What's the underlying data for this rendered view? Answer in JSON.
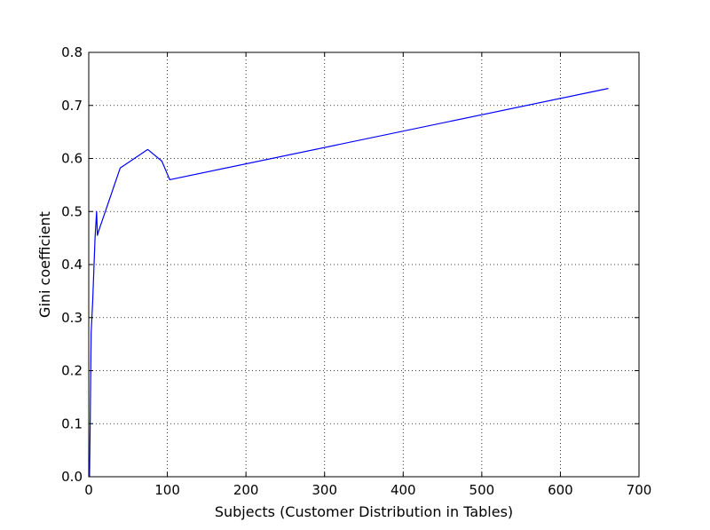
{
  "chart_data": {
    "type": "line",
    "title": "",
    "xlabel": "Subjects (Customer Distribution in Tables)",
    "ylabel": "Gini coefficient",
    "xlim": [
      0,
      700
    ],
    "ylim": [
      0,
      0.8
    ],
    "xticks": [
      0,
      100,
      200,
      300,
      400,
      500,
      600,
      700
    ],
    "yticks": [
      0,
      0.1,
      0.2,
      0.3,
      0.4,
      0.5,
      0.6,
      0.7,
      0.8
    ],
    "xtick_labels": [
      "0",
      "100",
      "200",
      "300",
      "400",
      "500",
      "600",
      "700"
    ],
    "ytick_labels": [
      "0.0",
      "0.1",
      "0.2",
      "0.3",
      "0.4",
      "0.5",
      "0.6",
      "0.7",
      "0.8"
    ],
    "grid": true,
    "grid_style": "dotted",
    "series": [
      {
        "color": "#0000ff",
        "x": [
          1,
          2,
          3,
          5,
          8,
          10,
          11,
          13,
          40,
          75,
          93,
          103,
          661
        ],
        "y": [
          0.0,
          0.12,
          0.27,
          0.33,
          0.45,
          0.5,
          0.455,
          0.465,
          0.582,
          0.617,
          0.595,
          0.56,
          0.732
        ]
      }
    ]
  }
}
